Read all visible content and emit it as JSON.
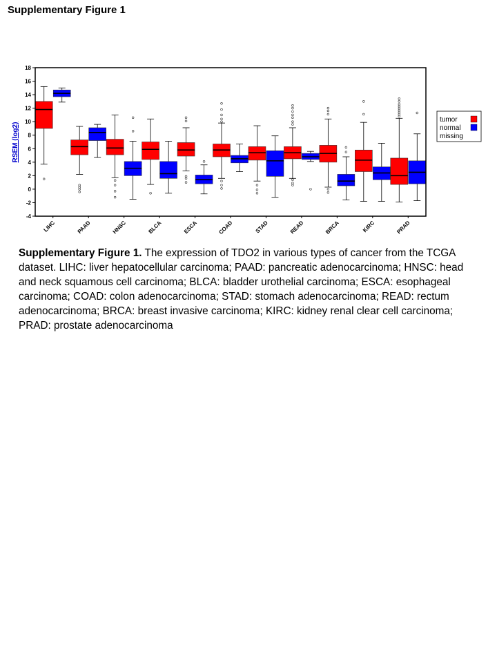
{
  "page": {
    "heading": "Supplementary Figure 1"
  },
  "caption": {
    "label": "Supplementary Figure 1.",
    "text": " The expression of TDO2 in various types of cancer from the TCGA dataset. LIHC: liver hepatocellular carcinoma; PAAD: pancreatic adenocarcinoma; HNSC: head and neck squamous cell carcinoma; BLCA: bladder urothelial carcinoma; ESCA: esophageal carcinoma; COAD: colon adenocarcinoma; STAD: stomach adenocarcinoma; READ: rectum adenocarcinoma; BRCA: breast invasive carcinoma; KIRC: kidney renal clear cell carcinoma; PRAD: prostate adenocarcinoma"
  },
  "chart_data": {
    "type": "boxplot",
    "title": "",
    "xlabel": "",
    "ylabel": "RSEM (log2)",
    "ylim": [
      -4,
      18
    ],
    "yticks": [
      -4,
      -2,
      0,
      2,
      4,
      6,
      8,
      10,
      12,
      14,
      16,
      18
    ],
    "grid": false,
    "legend": {
      "placement": "right",
      "entries": [
        {
          "label": "tumor",
          "color": "#ff0000"
        },
        {
          "label": "normal",
          "color": "#0000ff"
        },
        {
          "label": "missing",
          "color": ""
        }
      ]
    },
    "colors": {
      "tumor": "#ff0000",
      "normal": "#0000ff",
      "median": "#000000",
      "ylabel": "#0000cc"
    },
    "categories": [
      "LIHC",
      "PAAD",
      "HNSC",
      "BLCA",
      "ESCA",
      "COAD",
      "STAD",
      "READ",
      "BRCA",
      "KIRC",
      "PRAD"
    ],
    "series": [
      {
        "name": "tumor",
        "boxes": [
          {
            "whisker_low": 3.7,
            "q1": 9.0,
            "median": 11.8,
            "q3": 13.0,
            "whisker_high": 15.2,
            "outliers": [
              1.5
            ]
          },
          {
            "whisker_low": 2.2,
            "q1": 5.1,
            "median": 6.3,
            "q3": 7.3,
            "whisker_high": 9.3,
            "outliers": [
              0.6,
              0.3,
              0.0,
              -0.4
            ]
          },
          {
            "whisker_low": 1.7,
            "q1": 5.1,
            "median": 6.1,
            "q3": 7.4,
            "whisker_high": 11.0,
            "outliers": [
              1.3,
              0.6,
              -0.3,
              -1.2
            ]
          },
          {
            "whisker_low": 0.7,
            "q1": 4.4,
            "median": 5.9,
            "q3": 7.0,
            "whisker_high": 10.4,
            "outliers": [
              -0.6
            ]
          },
          {
            "whisker_low": 2.7,
            "q1": 4.9,
            "median": 5.8,
            "q3": 6.9,
            "whisker_high": 9.1,
            "outliers": [
              10.6,
              10.1,
              1.9,
              1.6,
              1.0
            ]
          },
          {
            "whisker_low": 1.6,
            "q1": 4.8,
            "median": 5.8,
            "q3": 6.7,
            "whisker_high": 9.8,
            "outliers": [
              12.7,
              11.8,
              11.0,
              10.4,
              10.0,
              1.2,
              0.6,
              0.1
            ]
          },
          {
            "whisker_low": 1.2,
            "q1": 4.3,
            "median": 5.4,
            "q3": 6.3,
            "whisker_high": 9.4,
            "outliers": [
              0.6,
              -0.1,
              -0.6
            ]
          },
          {
            "whisker_low": 1.6,
            "q1": 4.5,
            "median": 5.4,
            "q3": 6.3,
            "whisker_high": 9.1,
            "outliers": [
              12.4,
              12.0,
              11.5,
              11.0,
              10.6,
              10.0,
              9.6,
              1.4,
              0.9,
              0.6
            ]
          },
          {
            "whisker_low": 0.3,
            "q1": 4.0,
            "median": 5.3,
            "q3": 6.5,
            "whisker_high": 10.4,
            "outliers": [
              12.0,
              11.6,
              11.1,
              0.0,
              -0.5
            ]
          },
          {
            "whisker_low": -1.8,
            "q1": 2.6,
            "median": 4.3,
            "q3": 5.8,
            "whisker_high": 9.9,
            "outliers": [
              13.0,
              11.1
            ]
          },
          {
            "whisker_low": -1.9,
            "q1": 0.7,
            "median": 2.0,
            "q3": 4.6,
            "whisker_high": 10.5,
            "outliers": [
              13.4,
              13.0,
              12.6,
              12.3,
              12.0,
              11.7,
              11.4,
              11.1,
              10.8
            ]
          }
        ]
      },
      {
        "name": "normal",
        "boxes": [
          {
            "whisker_low": 12.9,
            "q1": 13.7,
            "median": 14.2,
            "q3": 14.7,
            "whisker_high": 15.0,
            "outliers": []
          },
          {
            "whisker_low": 4.7,
            "q1": 7.2,
            "median": 8.4,
            "q3": 9.1,
            "whisker_high": 9.6,
            "outliers": []
          },
          {
            "whisker_low": -1.5,
            "q1": 2.0,
            "median": 3.1,
            "q3": 4.1,
            "whisker_high": 7.1,
            "outliers": [
              10.6,
              8.6
            ]
          },
          {
            "whisker_low": -0.6,
            "q1": 1.6,
            "median": 2.3,
            "q3": 4.1,
            "whisker_high": 7.1,
            "outliers": []
          },
          {
            "whisker_low": -0.7,
            "q1": 0.8,
            "median": 1.4,
            "q3": 2.1,
            "whisker_high": 3.6,
            "outliers": [
              4.1
            ]
          },
          {
            "whisker_low": 2.6,
            "q1": 3.9,
            "median": 4.5,
            "q3": 5.0,
            "whisker_high": 6.7,
            "outliers": []
          },
          {
            "whisker_low": -1.2,
            "q1": 1.9,
            "median": 4.2,
            "q3": 5.7,
            "whisker_high": 7.9,
            "outliers": []
          },
          {
            "whisker_low": 4.1,
            "q1": 4.4,
            "median": 4.8,
            "q3": 5.3,
            "whisker_high": 5.6,
            "outliers": [
              0.0
            ]
          },
          {
            "whisker_low": -1.6,
            "q1": 0.5,
            "median": 1.2,
            "q3": 2.2,
            "whisker_high": 4.8,
            "outliers": [
              6.2,
              5.5
            ]
          },
          {
            "whisker_low": -1.8,
            "q1": 1.4,
            "median": 2.4,
            "q3": 3.3,
            "whisker_high": 6.8,
            "outliers": []
          },
          {
            "whisker_low": -1.7,
            "q1": 0.8,
            "median": 2.5,
            "q3": 4.2,
            "whisker_high": 8.2,
            "outliers": [
              11.3
            ]
          }
        ]
      }
    ]
  }
}
